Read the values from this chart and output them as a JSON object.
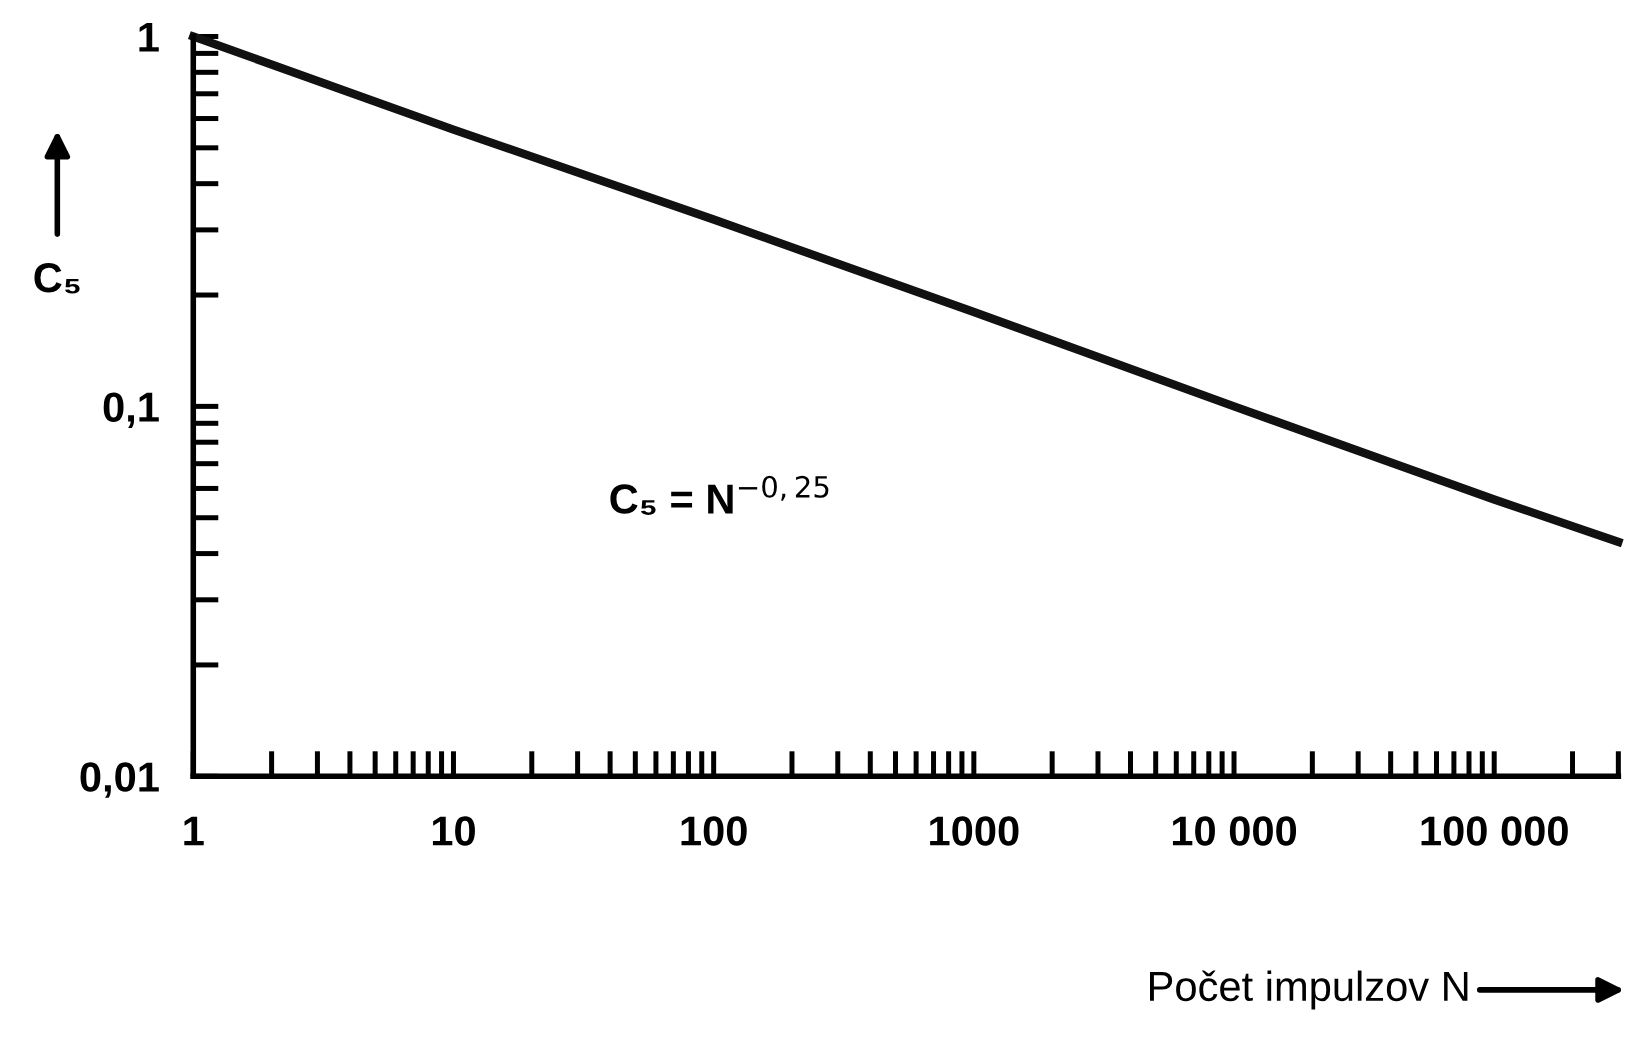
{
  "chart_data": {
    "type": "line",
    "log": "xy",
    "x": [
      1,
      10,
      100,
      1000,
      10000,
      100000,
      300000
    ],
    "series": [
      {
        "color": "#111111",
        "values": [
          1,
          0.56,
          0.32,
          0.18,
          0.1,
          0.056,
          0.043
        ]
      }
    ],
    "xlim": [
      1,
      300000
    ],
    "ylim": [
      0.01,
      1
    ],
    "xticks": [
      1,
      10,
      100,
      1000,
      {
        "value": 10000,
        "label": "10 000"
      },
      {
        "value": 100000,
        "label": "100 000"
      }
    ],
    "yticks": [
      {
        "value": 0.01,
        "label": "0,01"
      },
      {
        "value": 0.1,
        "label": "0,1"
      },
      1
    ],
    "xlabel": "Počet impulzov N",
    "ylabel": "C₅",
    "annotations": [
      "C₅ = N$^{−0,25}$"
    ],
    "grid": false,
    "legend": false,
    "marker": "none",
    "line_style": "solid"
  }
}
